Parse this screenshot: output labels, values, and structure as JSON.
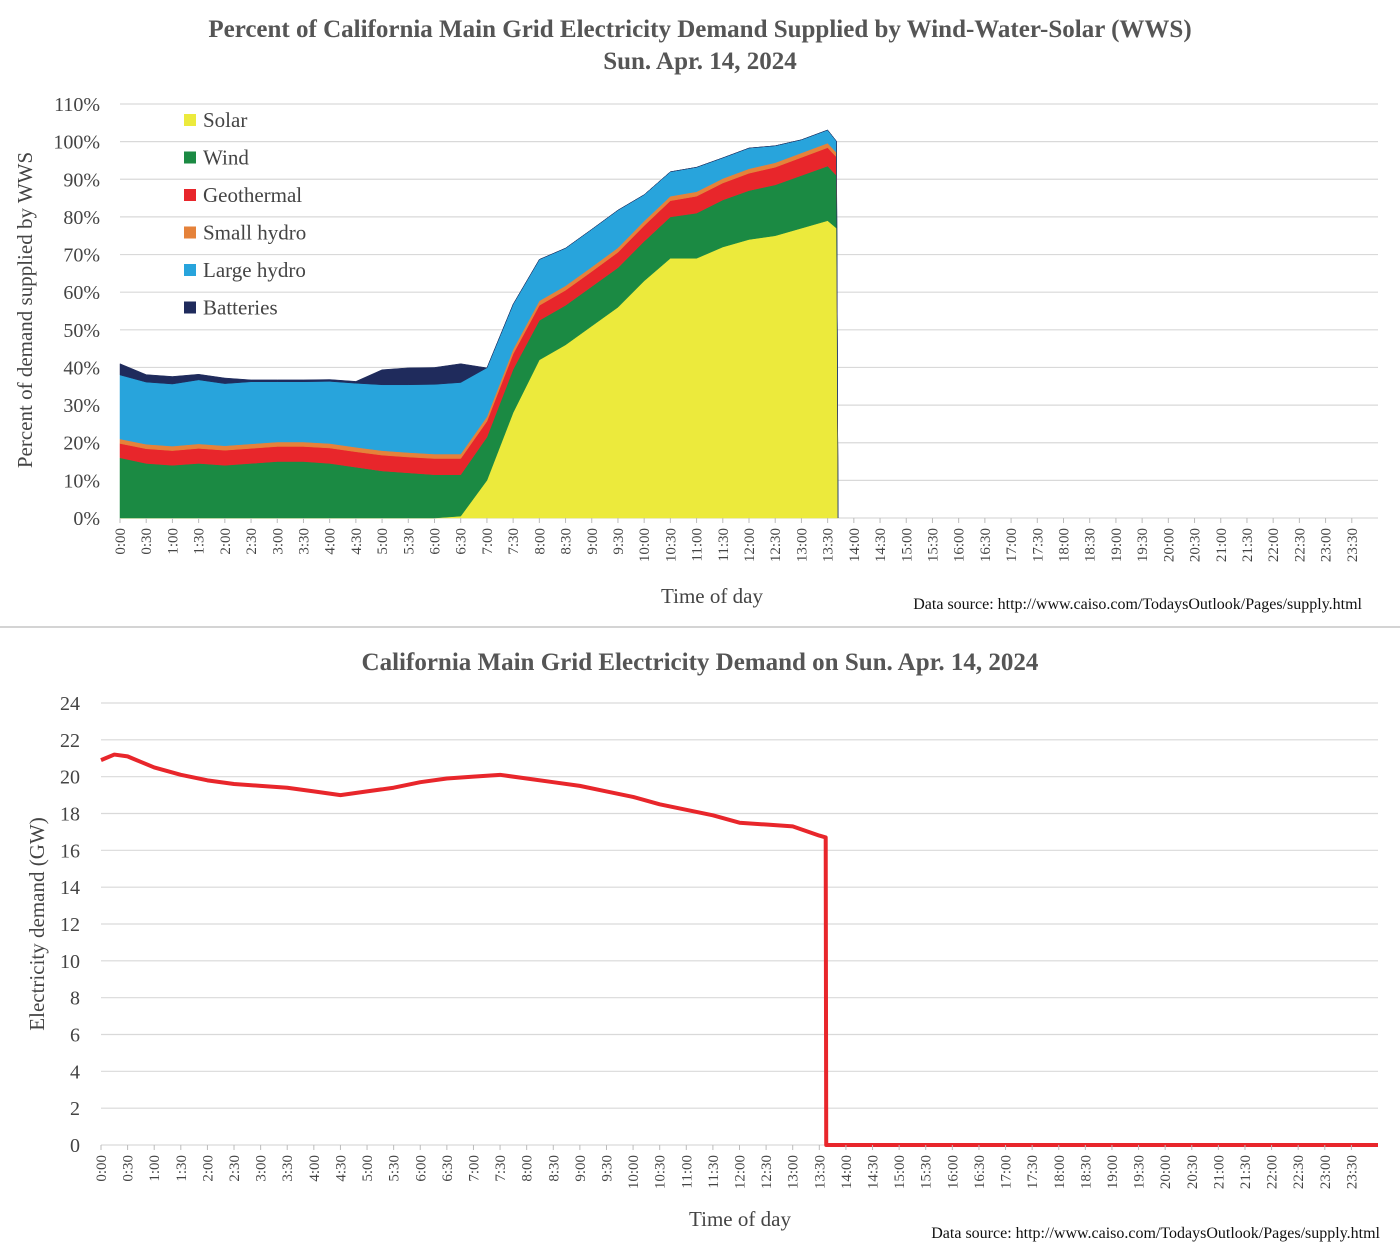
{
  "chart_data": [
    {
      "type": "area",
      "stacked": true,
      "title": "Percent of California Main Grid Electricity Demand Supplied by Wind-Water-Solar (WWS)",
      "subtitle": "Sun. Apr. 14, 2024",
      "xlabel": "Time of day",
      "ylabel": "Percent of demand supplied by WWS",
      "source": "Data source: http://www.caiso.com/TodaysOutlook/Pages/supply.html",
      "ylim": [
        0,
        110
      ],
      "yticks": [
        0,
        10,
        20,
        30,
        40,
        50,
        60,
        70,
        80,
        90,
        100,
        110
      ],
      "ytick_labels": [
        "0%",
        "10%",
        "20%",
        "30%",
        "40%",
        "50%",
        "60%",
        "70%",
        "80%",
        "90%",
        "100%",
        "110%"
      ],
      "x_hours": [
        0,
        0.5,
        1,
        1.5,
        2,
        2.5,
        3,
        3.5,
        4,
        4.5,
        5,
        5.5,
        6,
        6.5,
        7,
        7.5,
        8,
        8.5,
        9,
        9.5,
        10,
        10.5,
        11,
        11.5,
        12,
        12.5,
        13,
        13.5,
        13.67
      ],
      "xtick_labels": [
        "0:00",
        "0:30",
        "1:00",
        "1:30",
        "2:00",
        "2:30",
        "3:00",
        "3:30",
        "4:00",
        "4:30",
        "5:00",
        "5:30",
        "6:00",
        "6:30",
        "7:00",
        "7:30",
        "8:00",
        "8:30",
        "9:00",
        "9:30",
        "10:00",
        "10:30",
        "11:00",
        "11:30",
        "12:00",
        "12:30",
        "13:00",
        "13:30",
        "14:00",
        "14:30",
        "15:00",
        "15:30",
        "16:00",
        "16:30",
        "17:00",
        "17:30",
        "18:00",
        "18:30",
        "19:00",
        "19:30",
        "20:00",
        "20:30",
        "21:00",
        "21:30",
        "22:00",
        "22:30",
        "23:00",
        "23:30"
      ],
      "legend": [
        "Solar",
        "Wind",
        "Geothermal",
        "Small hydro",
        "Large hydro",
        "Batteries"
      ],
      "legend_position": "top-left",
      "series": [
        {
          "name": "Solar",
          "color": "#ecea3c",
          "values": [
            0,
            0,
            0,
            0,
            0,
            0,
            0,
            0,
            0,
            0,
            0,
            0,
            0,
            0.5,
            10,
            28,
            42,
            46,
            51,
            56,
            63,
            69,
            69,
            72,
            74,
            75,
            77,
            79,
            77
          ]
        },
        {
          "name": "Wind",
          "color": "#1b8a43",
          "values": [
            16,
            14.5,
            14,
            14.5,
            14,
            14.5,
            15,
            15,
            14.5,
            13.5,
            12.5,
            12,
            11.5,
            11,
            11.5,
            11.5,
            10.5,
            10.5,
            10.5,
            10.5,
            10.5,
            11,
            12,
            12.5,
            13,
            13.5,
            14,
            14.5,
            14
          ]
        },
        {
          "name": "Geothermal",
          "color": "#e8262b",
          "values": [
            3.8,
            3.9,
            3.9,
            4.0,
            4.0,
            4.0,
            4.0,
            4.0,
            4.1,
            4.1,
            4.2,
            4.2,
            4.3,
            4.3,
            4.2,
            4.1,
            4.0,
            4.0,
            4.0,
            4.1,
            4.2,
            4.3,
            4.5,
            4.5,
            4.6,
            4.7,
            4.8,
            4.9,
            4.9
          ]
        },
        {
          "name": "Small hydro",
          "color": "#e5823a",
          "values": [
            1.2,
            1.2,
            1.2,
            1.2,
            1.2,
            1.2,
            1.2,
            1.2,
            1.2,
            1.2,
            1.2,
            1.2,
            1.2,
            1.2,
            1.2,
            1.2,
            1.2,
            1.2,
            1.2,
            1.2,
            1.2,
            1.2,
            1.2,
            1.2,
            1.2,
            1.2,
            1.2,
            1.2,
            1.2
          ]
        },
        {
          "name": "Large hydro",
          "color": "#28a4dc",
          "values": [
            17,
            16.5,
            16.5,
            17,
            16.5,
            16.5,
            16,
            16,
            16.5,
            17,
            17.5,
            18,
            18.5,
            19,
            13,
            12,
            11,
            10,
            10,
            10,
            7,
            6.5,
            6.5,
            5.5,
            5.5,
            4.5,
            3.5,
            3.5,
            3
          ]
        },
        {
          "name": "Batteries",
          "color": "#1f2b5c",
          "values": [
            3,
            2,
            2,
            1.5,
            1.5,
            0.5,
            0.5,
            0.5,
            0.5,
            0.5,
            4,
            4.5,
            4.5,
            5,
            0,
            0,
            0,
            0,
            0,
            0,
            0,
            0,
            0,
            0,
            0,
            0,
            0,
            0,
            0
          ]
        }
      ]
    },
    {
      "type": "line",
      "title": "California Main Grid Electricity Demand on Sun. Apr. 14, 2024",
      "xlabel": "Time of day",
      "ylabel": "Electricity demand (GW)",
      "source": "Data source: http://www.caiso.com/TodaysOutlook/Pages/supply.html",
      "ylim": [
        0,
        24
      ],
      "yticks": [
        0,
        2,
        4,
        6,
        8,
        10,
        12,
        14,
        16,
        18,
        20,
        22,
        24
      ],
      "ytick_labels": [
        "0",
        "2",
        "4",
        "6",
        "8",
        "10",
        "12",
        "14",
        "16",
        "18",
        "20",
        "22",
        "24"
      ],
      "xtick_labels": [
        "0:00",
        "0:30",
        "1:00",
        "1:30",
        "2:00",
        "2:30",
        "3:00",
        "3:30",
        "4:00",
        "4:30",
        "5:00",
        "5:30",
        "6:00",
        "6:30",
        "7:00",
        "7:30",
        "8:00",
        "8:30",
        "9:00",
        "9:30",
        "10:00",
        "10:30",
        "11:00",
        "11:30",
        "12:00",
        "12:30",
        "13:00",
        "13:30",
        "14:00",
        "14:30",
        "15:00",
        "15:30",
        "16:00",
        "16:30",
        "17:00",
        "17:30",
        "18:00",
        "18:30",
        "19:00",
        "19:30",
        "20:00",
        "20:30",
        "21:00",
        "21:30",
        "22:00",
        "22:30",
        "23:00",
        "23:30"
      ],
      "series": [
        {
          "name": "Demand",
          "color": "#e8262b",
          "x_hours": [
            0,
            0.25,
            0.5,
            0.75,
            1,
            1.5,
            2,
            2.5,
            3,
            3.5,
            4,
            4.5,
            5,
            5.5,
            6,
            6.5,
            7,
            7.5,
            8,
            8.5,
            9,
            9.5,
            10,
            10.5,
            11,
            11.5,
            12,
            12.5,
            13,
            13.5,
            13.62,
            13.63,
            24
          ],
          "values": [
            20.9,
            21.2,
            21.1,
            20.8,
            20.5,
            20.1,
            19.8,
            19.6,
            19.5,
            19.4,
            19.2,
            19.0,
            19.2,
            19.4,
            19.7,
            19.9,
            20.0,
            20.1,
            19.9,
            19.7,
            19.5,
            19.2,
            18.9,
            18.5,
            18.2,
            17.9,
            17.5,
            17.4,
            17.3,
            16.8,
            16.7,
            0,
            0
          ]
        }
      ]
    }
  ]
}
